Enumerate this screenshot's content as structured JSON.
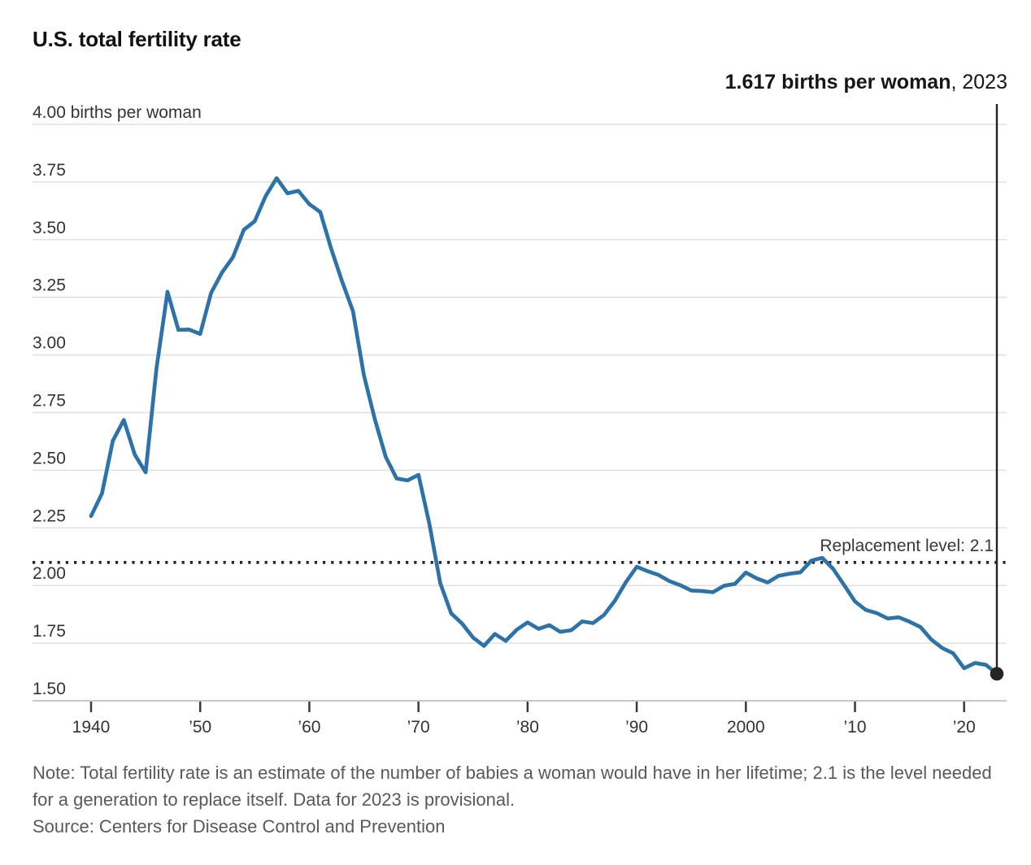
{
  "header": {
    "title": "U.S. total fertility rate"
  },
  "note": "Note: Total fertility rate is an estimate of the number of babies a woman would have in her lifetime; 2.1 is the level needed for a generation to replace itself. Data for 2023 is provisional.",
  "source": "Source: Centers for Disease Control and Prevention",
  "chart_data": {
    "type": "line",
    "title": "U.S. total fertility rate",
    "unit": "births per woman",
    "ylim": [
      1.5,
      4.0
    ],
    "grid": true,
    "x": [
      1940,
      1941,
      1942,
      1943,
      1944,
      1945,
      1946,
      1947,
      1948,
      1949,
      1950,
      1951,
      1952,
      1953,
      1954,
      1955,
      1956,
      1957,
      1958,
      1959,
      1960,
      1961,
      1962,
      1963,
      1964,
      1965,
      1966,
      1967,
      1968,
      1969,
      1970,
      1971,
      1972,
      1973,
      1974,
      1975,
      1976,
      1977,
      1978,
      1979,
      1980,
      1981,
      1982,
      1983,
      1984,
      1985,
      1986,
      1987,
      1988,
      1989,
      1990,
      1991,
      1992,
      1993,
      1994,
      1995,
      1996,
      1997,
      1998,
      1999,
      2000,
      2001,
      2002,
      2003,
      2004,
      2005,
      2006,
      2007,
      2008,
      2009,
      2010,
      2011,
      2012,
      2013,
      2014,
      2015,
      2016,
      2017,
      2018,
      2019,
      2020,
      2021,
      2022,
      2023
    ],
    "values": [
      2.301,
      2.399,
      2.628,
      2.718,
      2.568,
      2.491,
      2.943,
      3.274,
      3.109,
      3.11,
      3.091,
      3.269,
      3.358,
      3.424,
      3.543,
      3.58,
      3.689,
      3.767,
      3.701,
      3.712,
      3.654,
      3.62,
      3.461,
      3.319,
      3.19,
      2.913,
      2.721,
      2.558,
      2.464,
      2.456,
      2.48,
      2.267,
      2.01,
      1.879,
      1.835,
      1.774,
      1.738,
      1.79,
      1.76,
      1.808,
      1.84,
      1.812,
      1.828,
      1.799,
      1.806,
      1.844,
      1.837,
      1.872,
      1.934,
      2.014,
      2.081,
      2.062,
      2.046,
      2.019,
      2.001,
      1.978,
      1.976,
      1.971,
      1.999,
      2.007,
      2.056,
      2.031,
      2.013,
      2.042,
      2.051,
      2.057,
      2.108,
      2.12,
      2.072,
      2.002,
      1.931,
      1.894,
      1.88,
      1.857,
      1.862,
      1.843,
      1.82,
      1.765,
      1.729,
      1.706,
      1.641,
      1.664,
      1.656,
      1.617
    ],
    "yticks": [
      {
        "value": 4.0,
        "label": "4.00 births per woman"
      },
      {
        "value": 3.75,
        "label": "3.75"
      },
      {
        "value": 3.5,
        "label": "3.50"
      },
      {
        "value": 3.25,
        "label": "3.25"
      },
      {
        "value": 3.0,
        "label": "3.00"
      },
      {
        "value": 2.75,
        "label": "2.75"
      },
      {
        "value": 2.5,
        "label": "2.50"
      },
      {
        "value": 2.25,
        "label": "2.25"
      },
      {
        "value": 2.0,
        "label": "2.00"
      },
      {
        "value": 1.75,
        "label": "1.75"
      },
      {
        "value": 1.5,
        "label": "1.50"
      }
    ],
    "xticks": [
      {
        "value": 1940,
        "label": "1940"
      },
      {
        "value": 1950,
        "label": "’50"
      },
      {
        "value": 1960,
        "label": "’60"
      },
      {
        "value": 1970,
        "label": "’70"
      },
      {
        "value": 1980,
        "label": "’80"
      },
      {
        "value": 1990,
        "label": "’90"
      },
      {
        "value": 2000,
        "label": "2000"
      },
      {
        "value": 2010,
        "label": "’10"
      },
      {
        "value": 2020,
        "label": "’20"
      }
    ],
    "replacement_line": {
      "value": 2.1,
      "label": "Replacement level: 2.1"
    },
    "end_annotation": {
      "year": 2023,
      "value": 1.617,
      "label_bold": "1.617 births per woman",
      "label_regular": ", 2023"
    },
    "legend": "none",
    "colors": {
      "line": "#2E73A8",
      "annotation_dark": "#242424",
      "grid": "#E0E0E0",
      "axis": "#C8C8C8",
      "tick": "#3A3A3A",
      "axis_label": "#333333",
      "replacement_label": "#383838"
    }
  }
}
